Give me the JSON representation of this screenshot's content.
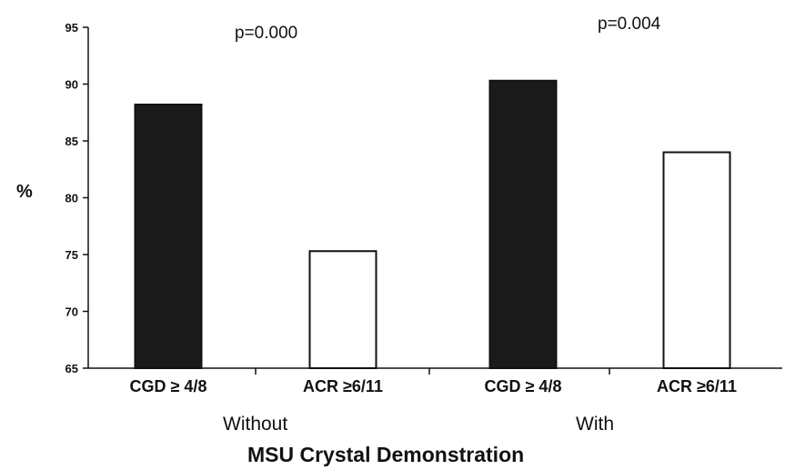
{
  "chart_data": {
    "type": "bar",
    "categories": [
      "CGD ≥ 4/8",
      "ACR ≥6/11",
      "CGD ≥ 4/8",
      "ACR ≥6/11"
    ],
    "values": [
      88.2,
      75.3,
      90.3,
      84.0
    ],
    "bar_colors": [
      "#1a1a1a",
      "#ffffff",
      "#1a1a1a",
      "#ffffff"
    ],
    "groups": [
      "Without",
      "With"
    ],
    "p_values": [
      "p=0.000",
      "p=0.004"
    ],
    "ylabel": "%",
    "xlabel": "MSU Crystal Demonstration",
    "ylim": [
      65,
      95
    ],
    "yticks": [
      "65",
      "70",
      "75",
      "80",
      "85",
      "90",
      "95"
    ],
    "grid": false,
    "legend": "none"
  }
}
